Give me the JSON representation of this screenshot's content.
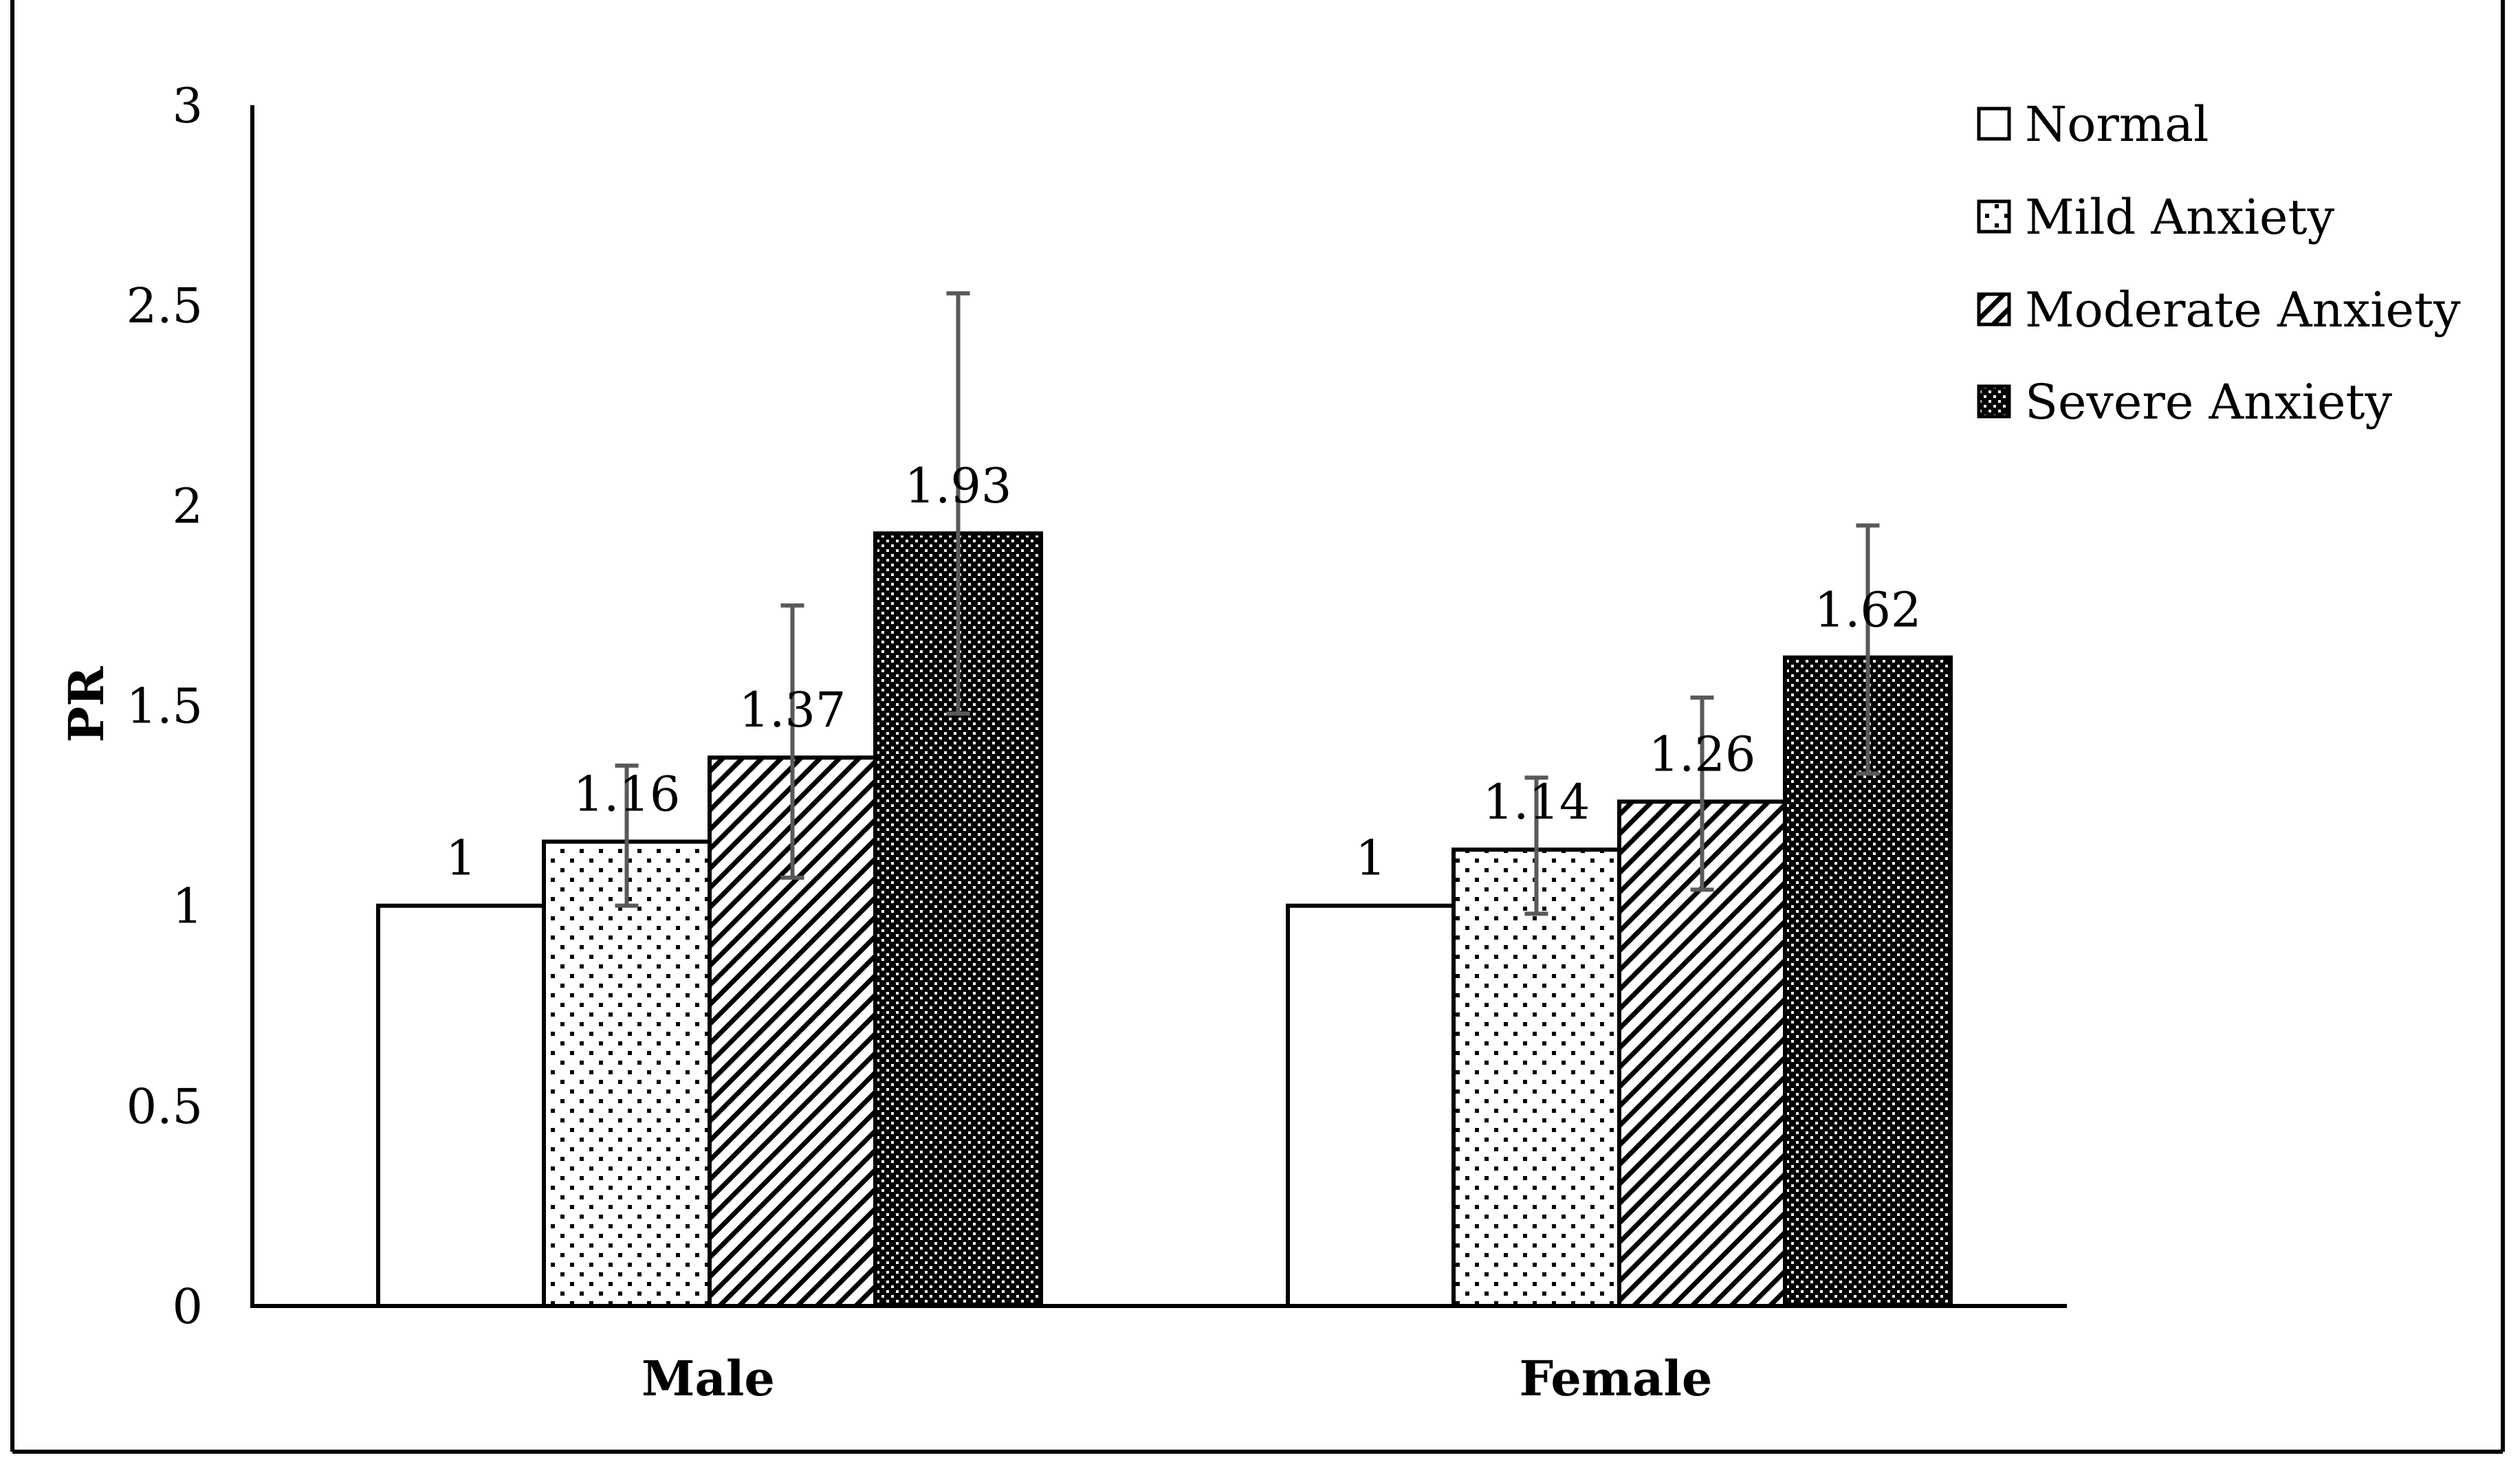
{
  "chart_data": {
    "type": "bar",
    "title": "",
    "xlabel": "",
    "ylabel": "PR",
    "ylim": [
      0,
      3
    ],
    "yticks": [
      "0",
      "0.5",
      "1",
      "1.5",
      "2",
      "2.5",
      "3"
    ],
    "categories": [
      "Male",
      "Female"
    ],
    "grid": false,
    "legend_position": "top-right",
    "series": [
      {
        "name": "Normal",
        "pattern": "none",
        "values": [
          1,
          1
        ],
        "labels": [
          "1",
          "1"
        ],
        "error_low": [
          null,
          null
        ],
        "error_high": [
          null,
          null
        ]
      },
      {
        "name": "Mild Anxiety",
        "pattern": "dots",
        "values": [
          1.16,
          1.14
        ],
        "labels": [
          "1.16",
          "1.14"
        ],
        "error_low": [
          1.0,
          0.98
        ],
        "error_high": [
          1.35,
          1.32
        ]
      },
      {
        "name": "Moderate Anxiety",
        "pattern": "diagonal",
        "values": [
          1.37,
          1.26
        ],
        "labels": [
          "1.37",
          "1.26"
        ],
        "error_low": [
          1.07,
          1.04
        ],
        "error_high": [
          1.75,
          1.52
        ]
      },
      {
        "name": "Severe Anxiety",
        "pattern": "dense",
        "values": [
          1.93,
          1.62
        ],
        "labels": [
          "1.93",
          "1.62"
        ],
        "error_low": [
          1.48,
          1.33
        ],
        "error_high": [
          2.53,
          1.95
        ]
      }
    ]
  },
  "colors": {
    "bar_stroke": "#000000",
    "bar_fill": "#ffffff",
    "error_bar": "#595959",
    "text": "#000000"
  }
}
